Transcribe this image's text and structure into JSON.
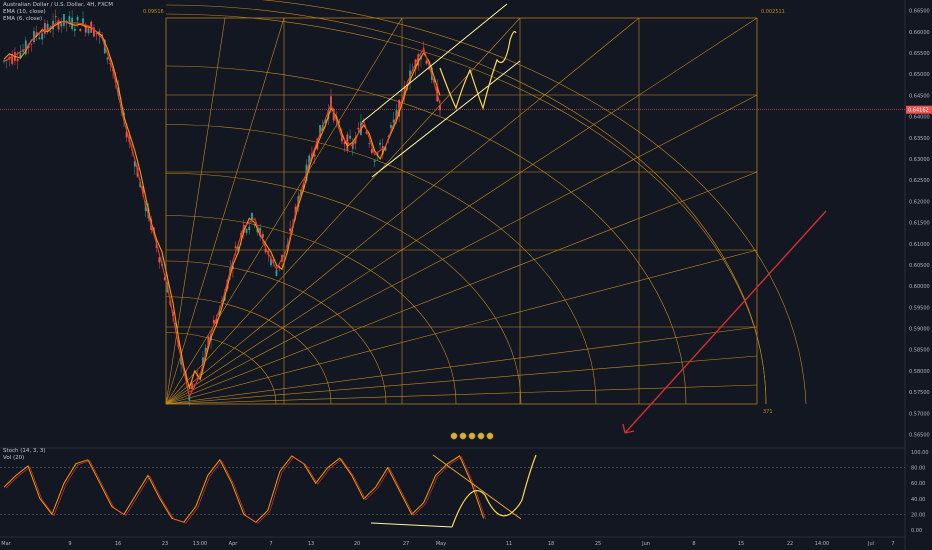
{
  "title": "Australian Dollar / U.S. Dollar, 4H, FXCM",
  "indicators": [
    "EMA (10, close)",
    "EMA (6, close)"
  ],
  "stoch_label": "Stoch (14, 3, 3)",
  "vol_label": "Vol (20)",
  "price_label": "0.64162",
  "fib_left_label": "0.09516",
  "fib_right_label": "0.002511",
  "fib_bottom_label": "371",
  "colors": {
    "background": "#131722",
    "candle_up": "#26a69a",
    "candle_down": "#ef5350",
    "ema_fast": "#ff9800",
    "ema_slow": "#e53935",
    "gann": "#c58a1b",
    "channel": "#fff59d",
    "projection": "#ffd54f",
    "arrow": "#d32f2f",
    "price_line": "#ef5350"
  },
  "chart_data": {
    "type": "line",
    "title": "Australian Dollar / U.S. Dollar, 4H, FXCM",
    "x_tick_labels": [
      "Mar",
      "9",
      "16",
      "23",
      "13:00",
      "Apr",
      "7",
      "13",
      "20",
      "27",
      "May",
      "11",
      "18",
      "25",
      "Jun",
      "8",
      "15",
      "22",
      "14:00",
      "Jul",
      "7"
    ],
    "y_tick_labels": [
      "0.66500",
      "0.66000",
      "0.65500",
      "0.65000",
      "0.64500",
      "0.64000",
      "0.63500",
      "0.63000",
      "0.62500",
      "0.62000",
      "0.61500",
      "0.61000",
      "0.60500",
      "0.60000",
      "0.59500",
      "0.59000",
      "0.58500",
      "0.58000",
      "0.57500",
      "0.57000",
      "0.56500"
    ],
    "ylim": [
      0.563,
      0.6675
    ],
    "series": [
      {
        "name": "EMA (10, close)",
        "points": [
          [
            0,
            0.6535
          ],
          [
            0.5,
            0.6548
          ],
          [
            1,
            0.6542
          ],
          [
            1.5,
            0.6538
          ],
          [
            2,
            0.6555
          ],
          [
            2.5,
            0.658
          ],
          [
            3,
            0.659
          ],
          [
            3.5,
            0.6605
          ],
          [
            4,
            0.66
          ],
          [
            4.5,
            0.6612
          ],
          [
            5,
            0.662
          ],
          [
            5.5,
            0.6625
          ],
          [
            6,
            0.662
          ],
          [
            6.5,
            0.6615
          ],
          [
            7,
            0.6618
          ],
          [
            7.5,
            0.6612
          ],
          [
            8,
            0.661
          ],
          [
            8.5,
            0.66
          ],
          [
            9,
            0.659
          ],
          [
            9.5,
            0.656
          ],
          [
            10,
            0.652
          ],
          [
            10.5,
            0.647
          ],
          [
            11,
            0.64
          ],
          [
            11.5,
            0.636
          ],
          [
            12,
            0.632
          ],
          [
            12.5,
            0.627
          ],
          [
            13,
            0.621
          ],
          [
            13.5,
            0.615
          ],
          [
            14,
            0.611
          ],
          [
            14.5,
            0.608
          ],
          [
            15,
            0.602
          ],
          [
            15.5,
            0.596
          ],
          [
            16,
            0.588
          ],
          [
            16.5,
            0.581
          ],
          [
            17,
            0.576
          ],
          [
            17.5,
            0.58
          ],
          [
            18,
            0.578
          ],
          [
            18.5,
            0.583
          ],
          [
            19,
            0.588
          ],
          [
            19.5,
            0.591
          ],
          [
            20,
            0.595
          ],
          [
            20.5,
            0.6
          ],
          [
            21,
            0.605
          ],
          [
            21.5,
            0.608
          ],
          [
            22,
            0.613
          ],
          [
            22.5,
            0.616
          ],
          [
            23,
            0.615
          ],
          [
            23.5,
            0.612
          ],
          [
            24,
            0.61
          ],
          [
            24.5,
            0.608
          ],
          [
            25,
            0.605
          ],
          [
            25.5,
            0.604
          ],
          [
            26,
            0.608
          ],
          [
            26.5,
            0.614
          ],
          [
            27,
            0.619
          ],
          [
            27.5,
            0.623
          ],
          [
            28,
            0.628
          ],
          [
            28.5,
            0.632
          ],
          [
            29,
            0.635
          ],
          [
            29.5,
            0.638
          ],
          [
            30,
            0.642
          ],
          [
            30.5,
            0.64
          ],
          [
            31,
            0.636
          ],
          [
            31.5,
            0.633
          ],
          [
            32,
            0.634
          ],
          [
            32.5,
            0.636
          ],
          [
            33,
            0.638
          ],
          [
            33.5,
            0.636
          ],
          [
            34,
            0.632
          ],
          [
            34.5,
            0.63
          ],
          [
            35,
            0.633
          ],
          [
            35.5,
            0.636
          ],
          [
            36,
            0.639
          ],
          [
            36.5,
            0.643
          ],
          [
            37,
            0.647
          ],
          [
            37.5,
            0.65
          ],
          [
            38,
            0.653
          ],
          [
            38.5,
            0.655
          ],
          [
            39,
            0.653
          ],
          [
            39.5,
            0.649
          ],
          [
            40,
            0.645
          ]
        ]
      },
      {
        "name": "EMA (6, close)",
        "points": [
          [
            0,
            0.653
          ],
          [
            1,
            0.6545
          ],
          [
            2,
            0.656
          ],
          [
            3,
            0.6595
          ],
          [
            4,
            0.6605
          ],
          [
            5,
            0.6625
          ],
          [
            6,
            0.6622
          ],
          [
            7,
            0.662
          ],
          [
            8,
            0.6612
          ],
          [
            9,
            0.6585
          ],
          [
            10,
            0.651
          ],
          [
            11,
            0.639
          ],
          [
            12,
            0.63
          ],
          [
            13,
            0.619
          ],
          [
            14,
            0.61
          ],
          [
            15,
            0.6
          ],
          [
            16,
            0.586
          ],
          [
            17,
            0.574
          ],
          [
            18,
            0.579
          ],
          [
            19,
            0.589
          ],
          [
            20,
            0.596
          ],
          [
            21,
            0.606
          ],
          [
            22,
            0.614
          ],
          [
            23,
            0.616
          ],
          [
            24,
            0.609
          ],
          [
            25,
            0.604
          ],
          [
            26,
            0.609
          ],
          [
            27,
            0.62
          ],
          [
            28,
            0.629
          ],
          [
            29,
            0.636
          ],
          [
            30,
            0.643
          ],
          [
            31,
            0.635
          ],
          [
            32,
            0.633
          ],
          [
            33,
            0.639
          ],
          [
            34,
            0.631
          ],
          [
            35,
            0.633
          ],
          [
            36,
            0.64
          ],
          [
            37,
            0.648
          ],
          [
            38,
            0.654
          ],
          [
            38.5,
            0.656
          ],
          [
            39,
            0.652
          ],
          [
            40,
            0.643
          ]
        ]
      },
      {
        "name": "Stoch (14, 3, 3)",
        "ylim": [
          0,
          100
        ],
        "y_tick_labels": [
          "100.00",
          "80.00",
          "60.00",
          "40.00",
          "20.00",
          "0.00"
        ],
        "points": [
          [
            0,
            55
          ],
          [
            1,
            70
          ],
          [
            2,
            82
          ],
          [
            3,
            40
          ],
          [
            4,
            20
          ],
          [
            5,
            60
          ],
          [
            6,
            85
          ],
          [
            7,
            90
          ],
          [
            8,
            60
          ],
          [
            9,
            30
          ],
          [
            10,
            20
          ],
          [
            11,
            45
          ],
          [
            12,
            70
          ],
          [
            13,
            40
          ],
          [
            14,
            15
          ],
          [
            15,
            10
          ],
          [
            16,
            30
          ],
          [
            17,
            70
          ],
          [
            18,
            90
          ],
          [
            19,
            60
          ],
          [
            20,
            20
          ],
          [
            21,
            10
          ],
          [
            22,
            25
          ],
          [
            23,
            75
          ],
          [
            24,
            95
          ],
          [
            25,
            85
          ],
          [
            26,
            60
          ],
          [
            27,
            80
          ],
          [
            28,
            92
          ],
          [
            29,
            70
          ],
          [
            30,
            40
          ],
          [
            31,
            55
          ],
          [
            32,
            80
          ],
          [
            33,
            50
          ],
          [
            34,
            20
          ],
          [
            35,
            35
          ],
          [
            36,
            70
          ],
          [
            37,
            85
          ],
          [
            38,
            95
          ],
          [
            39,
            60
          ],
          [
            40,
            15
          ]
        ]
      }
    ],
    "annotations": [
      "Gann fan and arcs",
      "ascending channel",
      "projected zig-zag path",
      "red down arrow"
    ]
  }
}
